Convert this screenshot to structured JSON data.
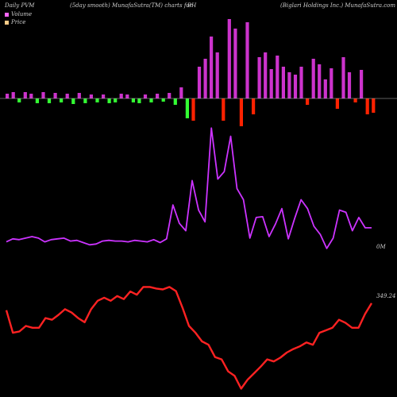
{
  "header": {
    "left": "Daily PVM",
    "middle": "(5day smooth) MunafaSutra(TM) charts for",
    "symbol": "BH",
    "right": "(Biglari  Holdings Inc.) MunafaSutra.com"
  },
  "legend": [
    {
      "label": "Volume",
      "color": "#ff66ff"
    },
    {
      "label": "Price",
      "color": "#ffcc88"
    }
  ],
  "labels": {
    "volume_level": "0M",
    "price_level": "349.24"
  },
  "colors": {
    "background": "#000000",
    "volume_up": "#cc33cc",
    "volume_down_red": "#ff2200",
    "volume_down_green": "#33ff33",
    "volume_line": "#cc33ff",
    "price_line": "#ff2222",
    "baseline": "#bbbbbb"
  },
  "chart_data": {
    "type": "bar",
    "series": [
      {
        "values": [
          6,
          8,
          -5,
          8,
          6,
          -6,
          8,
          -6,
          7,
          -5,
          6,
          -7,
          7,
          -6,
          5,
          -5,
          5,
          -6,
          -5,
          6,
          5,
          -5,
          -6,
          5,
          -5,
          6,
          -4,
          7,
          -8,
          14,
          -25,
          -28,
          40,
          50,
          78,
          58,
          -28,
          100,
          88,
          -35,
          96,
          -20,
          52,
          58,
          37,
          54,
          40,
          33,
          30,
          40,
          -8,
          50,
          43,
          24,
          38,
          -13,
          52,
          33,
          -5,
          36,
          -20,
          -18
        ]
      },
      {
        "values": [
          6.5,
          6.9,
          6.8,
          7.0,
          7.2,
          7.0,
          6.5,
          6.8,
          6.9,
          7.0,
          6.6,
          6.7,
          6.4,
          6.1,
          6.2,
          6.6,
          6.7,
          6.6,
          6.6,
          6.5,
          6.7,
          6.6,
          6.5,
          6.8,
          6.4,
          6.9,
          11.5,
          9.0,
          8.0,
          14.8,
          10.8,
          9.2,
          21.9,
          15.0,
          16.0,
          20.8,
          13.7,
          12.2,
          7.0,
          9.8,
          9.9,
          7.2,
          8.9,
          11.0,
          6.9,
          9.7,
          12.2,
          11.0,
          8.6,
          7.5,
          5.6,
          7.0,
          10.8,
          10.5,
          8.0,
          9.8,
          8.4,
          8.4
        ]
      },
      {
        "values": [
          344.8,
          333.9,
          334.5,
          337.2,
          336.3,
          336.3,
          341.0,
          340.2,
          342.6,
          345.3,
          343.7,
          341.0,
          339.0,
          345.3,
          349.4,
          350.9,
          349.4,
          351.7,
          350.2,
          353.9,
          352.3,
          356.1,
          356.1,
          355.3,
          354.9,
          356.1,
          354.1,
          346.1,
          337.2,
          333.9,
          329.7,
          328.1,
          322.1,
          321.0,
          315.2,
          313.0,
          306.8,
          311.2,
          314.3,
          317.5,
          321.0,
          320.0,
          321.8,
          324.3,
          326.0,
          327.3,
          329.2,
          328.1,
          333.9,
          335.1,
          336.3,
          340.2,
          338.7,
          336.3,
          336.3,
          343.0,
          348.2
        ]
      }
    ]
  }
}
